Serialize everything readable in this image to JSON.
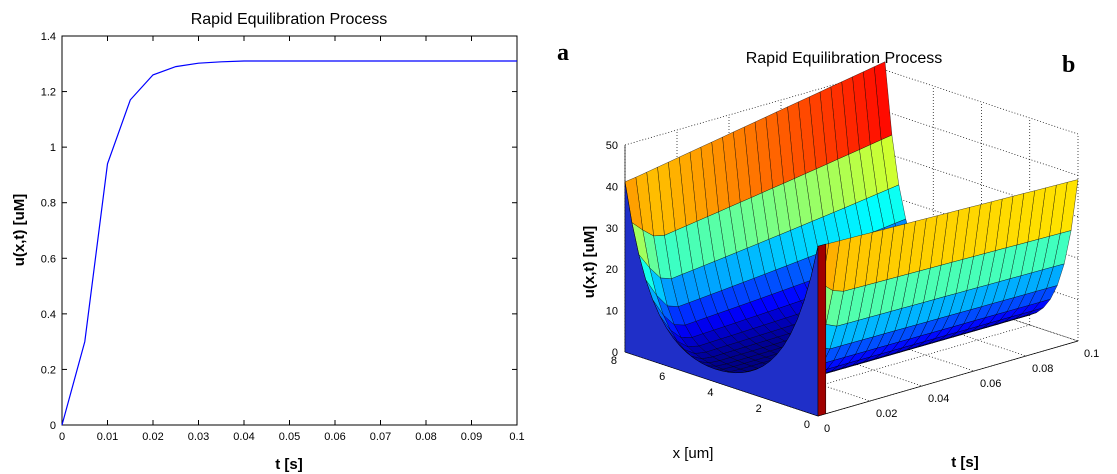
{
  "panel_labels": {
    "a": "a",
    "b": "b"
  },
  "chart_data": [
    {
      "type": "line",
      "title": "Rapid Equilibration Process",
      "xlabel": "t [s]",
      "ylabel": "u(x,t) [uM]",
      "xlim": [
        0,
        0.1
      ],
      "ylim": [
        0,
        1.4
      ],
      "x_ticks": [
        "0",
        "0.01",
        "0.02",
        "0.03",
        "0.04",
        "0.05",
        "0.06",
        "0.07",
        "0.08",
        "0.09",
        "0.1"
      ],
      "y_ticks": [
        "0",
        "0.2",
        "0.4",
        "0.6",
        "0.8",
        "1",
        "1.2",
        "1.4"
      ],
      "grid": false,
      "series": [
        {
          "color": "#0000ff",
          "x": [
            0,
            0.005,
            0.01,
            0.015,
            0.02,
            0.025,
            0.03,
            0.035,
            0.04,
            0.05,
            0.06,
            0.07,
            0.08,
            0.09,
            0.1
          ],
          "values": [
            0,
            0.3,
            0.94,
            1.17,
            1.26,
            1.29,
            1.302,
            1.307,
            1.31,
            1.31,
            1.31,
            1.31,
            1.31,
            1.31,
            1.31
          ]
        }
      ]
    },
    {
      "type": "surface",
      "title": "Rapid Equilibration Process",
      "xlabel": "x [um]",
      "ylabel": "t [s]",
      "zlabel": "u(x,t) [uM]",
      "xlim": [
        0,
        8
      ],
      "ylim": [
        0,
        0.1
      ],
      "zlim": [
        0,
        50
      ],
      "x_ticks": [
        "0",
        "2",
        "4",
        "6",
        "8"
      ],
      "t_ticks": [
        "0",
        "0.02",
        "0.04",
        "0.06",
        "0.08",
        "0.1"
      ],
      "z_ticks": [
        "0",
        "10",
        "20",
        "30",
        "40",
        "50"
      ],
      "grid": true,
      "colormap": "jet",
      "surface": {
        "description_values": "u(x,t) profile: high at both ends of x, near zero in the middle; initial curve at t=0 is sharp near x=0",
        "x_nodes": [
          0,
          0.5,
          1,
          1.5,
          2,
          2.5,
          3,
          3.5,
          4,
          4.5,
          5,
          5.5,
          6,
          6.5,
          7,
          7.5,
          8
        ],
        "t_nodes": [
          0,
          0.005,
          0.01,
          0.02,
          0.03,
          0.04,
          0.05,
          0.06,
          0.07,
          0.08,
          0.09,
          0.1
        ],
        "edge_value_x0_t0": 41,
        "edge_value_x8_t0": 41,
        "edge_value_x0_tmax": 39,
        "edge_value_x8_tmax": 52,
        "center_min": 0
      }
    }
  ]
}
